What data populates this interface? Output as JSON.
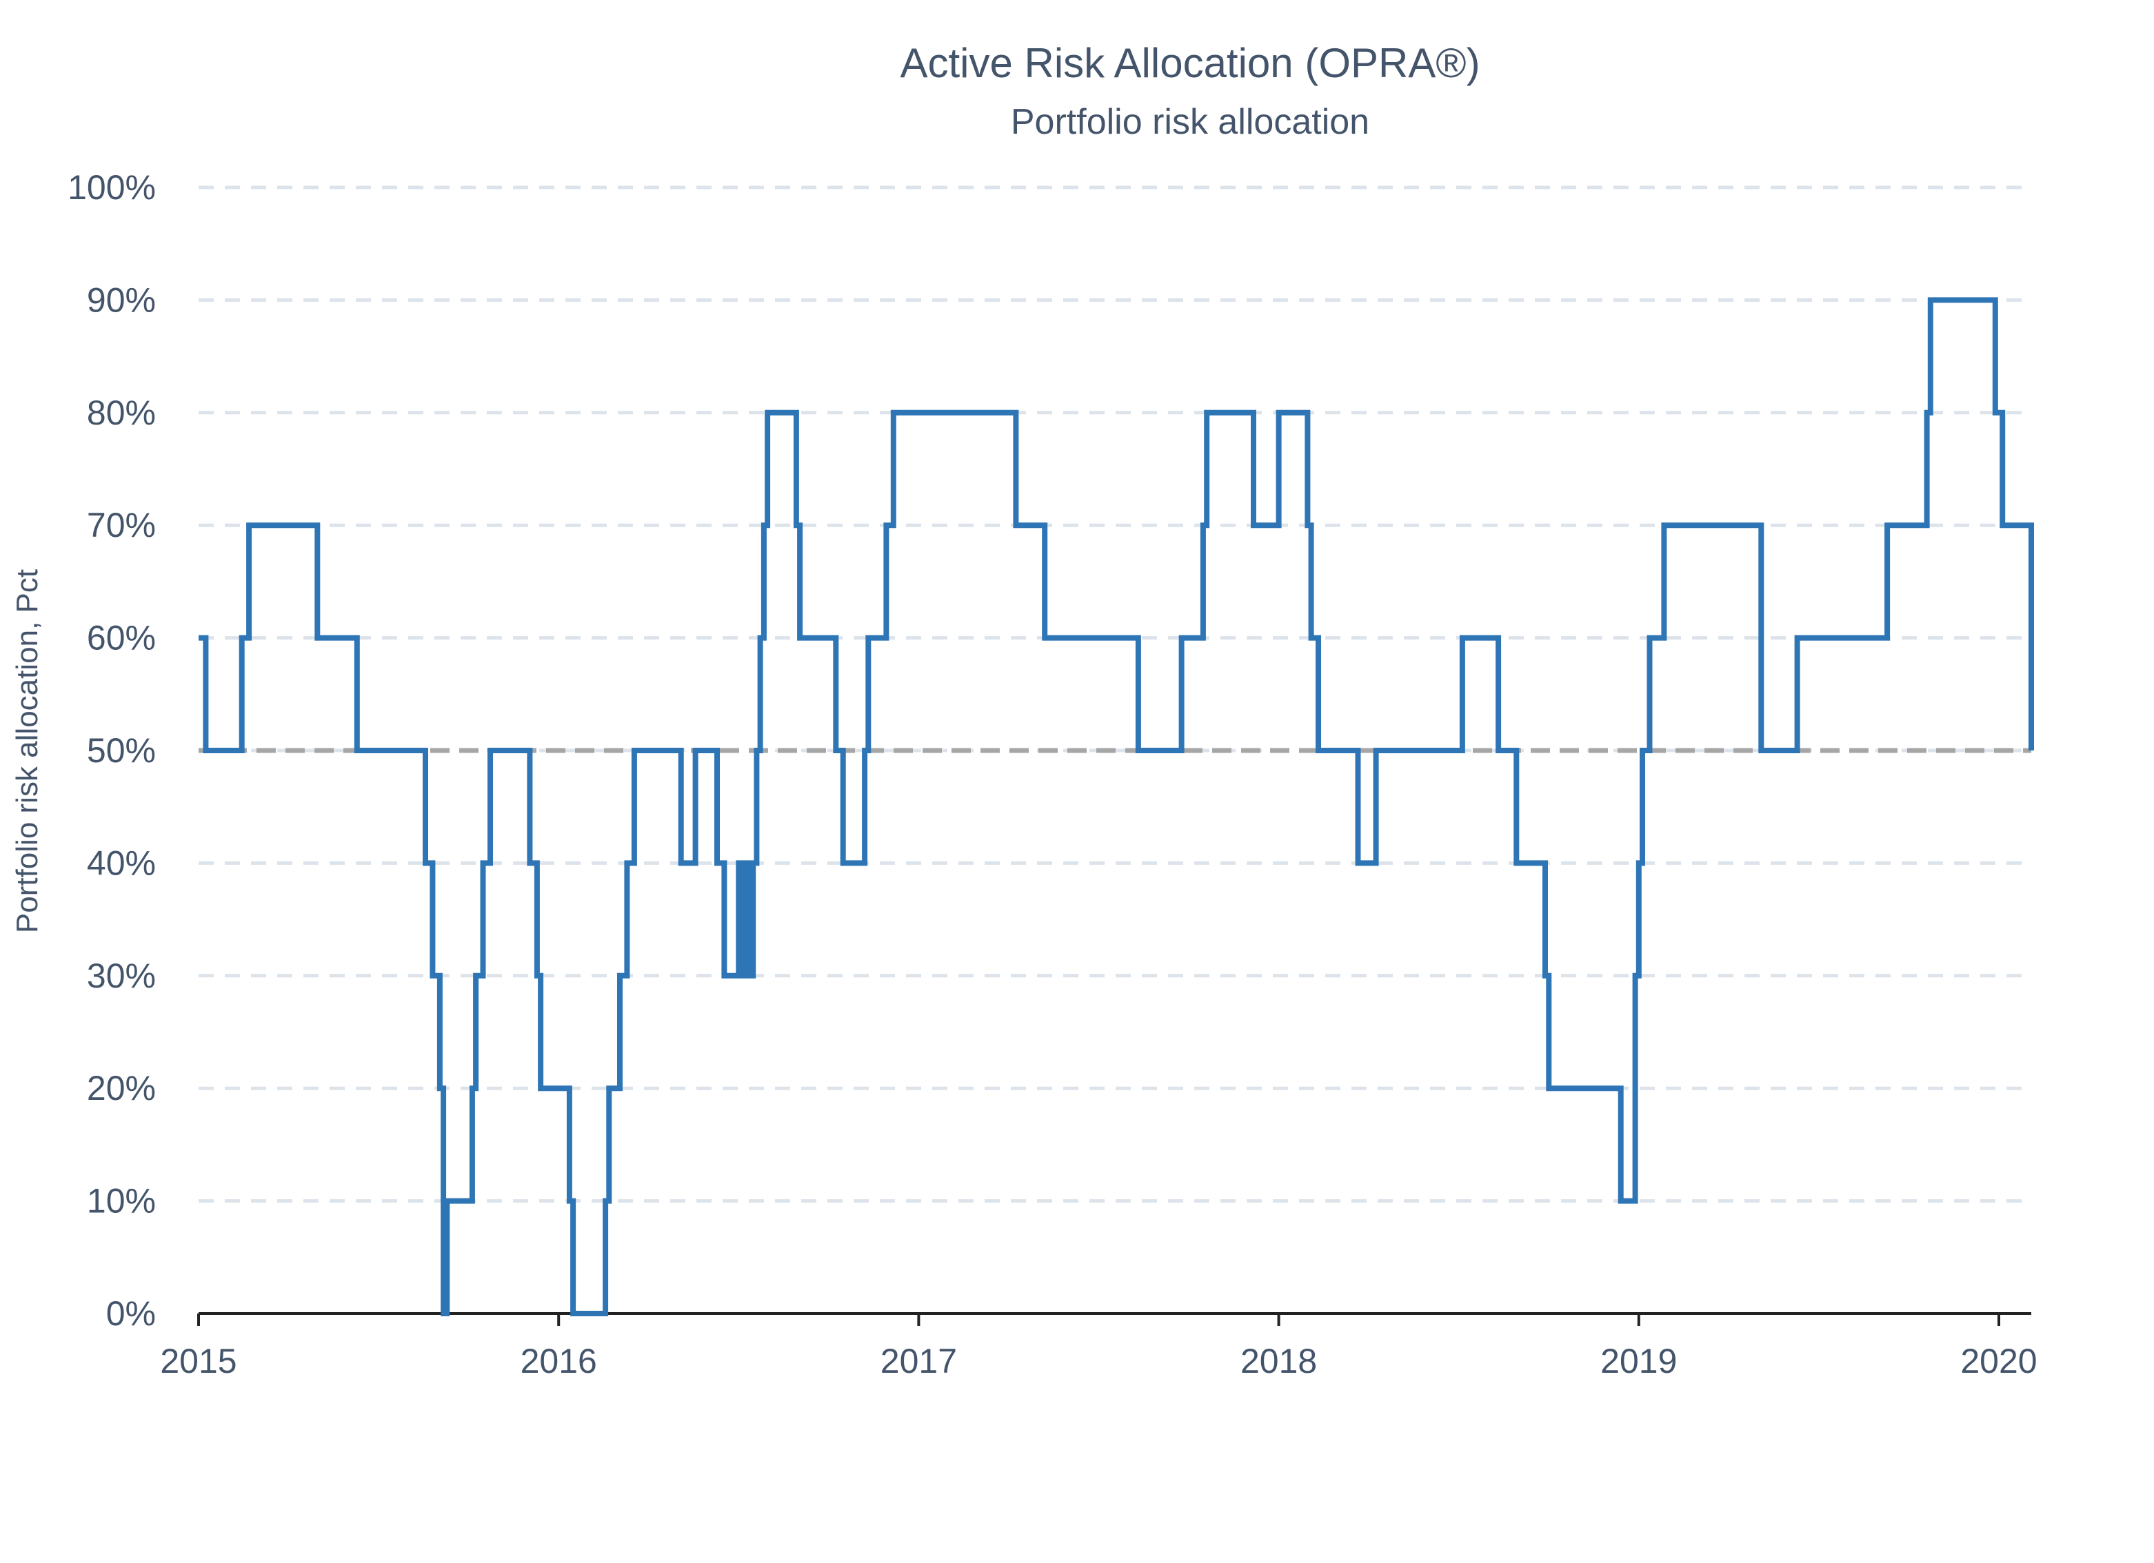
{
  "chart_data": {
    "type": "line",
    "title": "Active Risk Allocation (OPRA®)",
    "subtitle": "Portfolio risk allocation",
    "ylabel": "Portfolio risk allocation, Pct",
    "xlabel": "",
    "xlim": [
      2015.0,
      2020.09
    ],
    "ylim": [
      0,
      100
    ],
    "x_ticks": [
      2015,
      2016,
      2017,
      2018,
      2019,
      2020
    ],
    "x_tick_labels": [
      "2015",
      "2016",
      "2017",
      "2018",
      "2019",
      "2020"
    ],
    "y_ticks": [
      0,
      10,
      20,
      30,
      40,
      50,
      60,
      70,
      80,
      90,
      100
    ],
    "y_tick_labels": [
      "0%",
      "10%",
      "20%",
      "30%",
      "40%",
      "50%",
      "60%",
      "70%",
      "80%",
      "90%",
      "100%"
    ],
    "grid": true,
    "reference_line": {
      "y": 50,
      "color": "#a6a6a6",
      "style": "dashed"
    },
    "series": [
      {
        "color": "#2e75b6",
        "step": true,
        "points": [
          [
            2015.0,
            60
          ],
          [
            2015.02,
            50
          ],
          [
            2015.12,
            60
          ],
          [
            2015.14,
            70
          ],
          [
            2015.33,
            60
          ],
          [
            2015.44,
            50
          ],
          [
            2015.63,
            40
          ],
          [
            2015.65,
            30
          ],
          [
            2015.67,
            20
          ],
          [
            2015.68,
            0
          ],
          [
            2015.69,
            10
          ],
          [
            2015.76,
            20
          ],
          [
            2015.77,
            30
          ],
          [
            2015.79,
            40
          ],
          [
            2015.81,
            50
          ],
          [
            2015.92,
            40
          ],
          [
            2015.94,
            30
          ],
          [
            2015.95,
            20
          ],
          [
            2016.03,
            10
          ],
          [
            2016.04,
            0
          ],
          [
            2016.13,
            10
          ],
          [
            2016.14,
            20
          ],
          [
            2016.17,
            30
          ],
          [
            2016.19,
            40
          ],
          [
            2016.21,
            50
          ],
          [
            2016.34,
            40
          ],
          [
            2016.38,
            50
          ],
          [
            2016.44,
            40
          ],
          [
            2016.46,
            30
          ],
          [
            2016.5,
            40
          ],
          [
            2016.51,
            30
          ],
          [
            2016.52,
            40
          ],
          [
            2016.53,
            30
          ],
          [
            2016.54,
            40
          ],
          [
            2016.55,
            50
          ],
          [
            2016.56,
            60
          ],
          [
            2016.57,
            70
          ],
          [
            2016.58,
            80
          ],
          [
            2016.66,
            70
          ],
          [
            2016.67,
            60
          ],
          [
            2016.77,
            50
          ],
          [
            2016.79,
            40
          ],
          [
            2016.85,
            50
          ],
          [
            2016.86,
            60
          ],
          [
            2016.91,
            70
          ],
          [
            2016.93,
            80
          ],
          [
            2017.27,
            70
          ],
          [
            2017.35,
            60
          ],
          [
            2017.61,
            50
          ],
          [
            2017.73,
            60
          ],
          [
            2017.79,
            70
          ],
          [
            2017.8,
            80
          ],
          [
            2017.93,
            70
          ],
          [
            2018.0,
            80
          ],
          [
            2018.08,
            70
          ],
          [
            2018.09,
            60
          ],
          [
            2018.11,
            50
          ],
          [
            2018.22,
            40
          ],
          [
            2018.27,
            50
          ],
          [
            2018.51,
            60
          ],
          [
            2018.61,
            50
          ],
          [
            2018.66,
            40
          ],
          [
            2018.74,
            30
          ],
          [
            2018.75,
            20
          ],
          [
            2018.95,
            10
          ],
          [
            2018.99,
            30
          ],
          [
            2019.0,
            40
          ],
          [
            2019.01,
            50
          ],
          [
            2019.03,
            60
          ],
          [
            2019.07,
            70
          ],
          [
            2019.34,
            50
          ],
          [
            2019.44,
            60
          ],
          [
            2019.69,
            70
          ],
          [
            2019.8,
            80
          ],
          [
            2019.81,
            90
          ],
          [
            2019.99,
            80
          ],
          [
            2020.01,
            70
          ],
          [
            2020.09,
            50
          ]
        ]
      }
    ]
  }
}
